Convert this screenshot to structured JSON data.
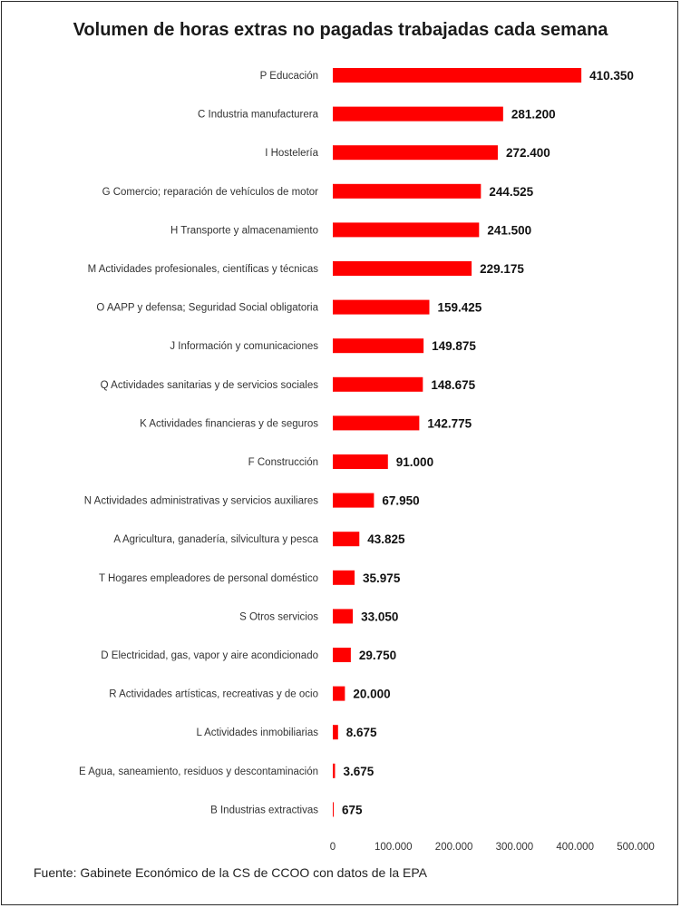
{
  "chart_data": {
    "type": "bar",
    "orientation": "horizontal",
    "title": "Volumen de horas extras no pagadas trabajadas cada semana",
    "categories": [
      "P Educación",
      "C Industria manufacturera",
      "I Hostelería",
      "G Comercio; reparación de vehículos de motor",
      "H Transporte y almacenamiento",
      "M Actividades profesionales, científicas y técnicas",
      "O AAPP y defensa; Seguridad Social obligatoria",
      "J Información y comunicaciones",
      "Q Actividades sanitarias y de servicios sociales",
      "K Actividades financieras y de seguros",
      "F Construcción",
      "N Actividades administrativas y servicios auxiliares",
      "A Agricultura, ganadería, silvicultura y pesca",
      "T Hogares empleadores de personal doméstico",
      "S Otros servicios",
      "D Electricidad, gas, vapor y aire acondicionado",
      "R Actividades artísticas, recreativas y de ocio",
      "L Actividades inmobiliarias",
      "E Agua, saneamiento, residuos y descontaminación",
      "B Industrias extractivas"
    ],
    "values": [
      410350,
      281200,
      272400,
      244525,
      241500,
      229175,
      159425,
      149875,
      148675,
      142775,
      91000,
      67950,
      43825,
      35975,
      33050,
      29750,
      20000,
      8675,
      3675,
      675
    ],
    "value_labels": [
      "410.350",
      "281.200",
      "272.400",
      "244.525",
      "241.500",
      "229.175",
      "159.425",
      "149.875",
      "148.675",
      "142.775",
      "91.000",
      "67.950",
      "43.825",
      "35.975",
      "33.050",
      "29.750",
      "20.000",
      "8.675",
      "3.675",
      "675"
    ],
    "xlim": [
      0,
      500000
    ],
    "xticks": [
      0,
      100000,
      200000,
      300000,
      400000,
      500000
    ],
    "xtick_labels": [
      "0",
      "100.000",
      "200.000",
      "300.000",
      "400.000",
      "500.000"
    ],
    "xlabel": "",
    "ylabel": "",
    "grid": false,
    "bar_color": "#ff0000",
    "source": "Fuente: Gabinete Económico de la CS de CCOO con datos de la EPA"
  }
}
